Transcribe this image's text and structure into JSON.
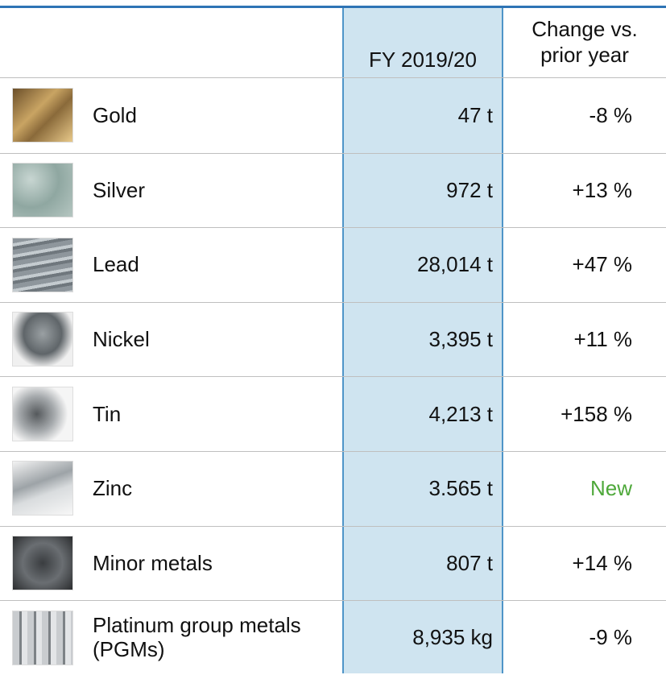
{
  "table": {
    "header": [
      "FY 2019/20",
      "Change vs. prior year"
    ],
    "rows": [
      {
        "name": "Gold",
        "value": "47 t",
        "change": "-8 %"
      },
      {
        "name": "Silver",
        "value": "972 t",
        "change": "+13 %"
      },
      {
        "name": "Lead",
        "value": "28,014 t",
        "change": "+47 %"
      },
      {
        "name": "Nickel",
        "value": "3,395 t",
        "change": "+11 %"
      },
      {
        "name": "Tin",
        "value": "4,213 t",
        "change": "+158 %"
      },
      {
        "name": "Zinc",
        "value": "3.565 t",
        "change": "New",
        "change_color": "#4ea83a"
      },
      {
        "name": "Minor metals",
        "value": "807 t",
        "change": "+14 %"
      },
      {
        "name": "Platinum group metals (PGMs)",
        "value": "8,935 kg",
        "change": "-9 %"
      }
    ]
  }
}
